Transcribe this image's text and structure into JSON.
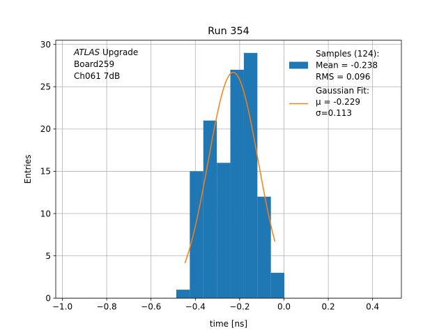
{
  "chart_data": {
    "type": "bar",
    "title": "Run 354",
    "xlabel": "time [ns]",
    "ylabel": "Entries",
    "xlim": [
      -1.03,
      0.53
    ],
    "ylim": [
      0,
      30.5
    ],
    "xticks": [
      -1.0,
      -0.8,
      -0.6,
      -0.4,
      -0.2,
      0.0,
      0.2,
      0.4
    ],
    "xtick_labels": [
      "−1.0",
      "−0.8",
      "−0.6",
      "−0.4",
      "−0.2",
      "0.0",
      "0.2",
      "0.4"
    ],
    "yticks": [
      0,
      5,
      10,
      15,
      20,
      25,
      30
    ],
    "grid": true,
    "annotation": {
      "lines": [
        [
          {
            "text": "ATLAS",
            "italic": true
          },
          {
            "text": " Upgrade",
            "italic": false
          }
        ],
        [
          {
            "text": " Board259",
            "italic": false
          }
        ],
        [
          {
            "text": " Ch061 7dB",
            "italic": false
          }
        ]
      ]
    },
    "legend": {
      "placement": "top-right",
      "entries": [
        {
          "kind": "bar",
          "lines": [
            "Samples (124):",
            " Mean = -0.238",
            " RMS = 0.096"
          ]
        },
        {
          "kind": "line",
          "lines": [
            "Gaussian Fit:",
            " μ = -0.229",
            " σ=0.113"
          ]
        }
      ]
    },
    "histogram": {
      "name": "Samples (124)",
      "color": "#1f77b4",
      "bin_edges": [
        -0.486,
        -0.425,
        -0.364,
        -0.303,
        -0.242,
        -0.181,
        -0.12,
        -0.059,
        0.002
      ],
      "counts": [
        1,
        15,
        21,
        16,
        27,
        29,
        12,
        3
      ]
    },
    "gaussian_fit": {
      "name": "Gaussian Fit",
      "color": "#ff7f0e",
      "mu": -0.229,
      "sigma": 0.113,
      "amplitude": 26.7,
      "x_range": [
        -0.447,
        -0.041
      ]
    }
  }
}
